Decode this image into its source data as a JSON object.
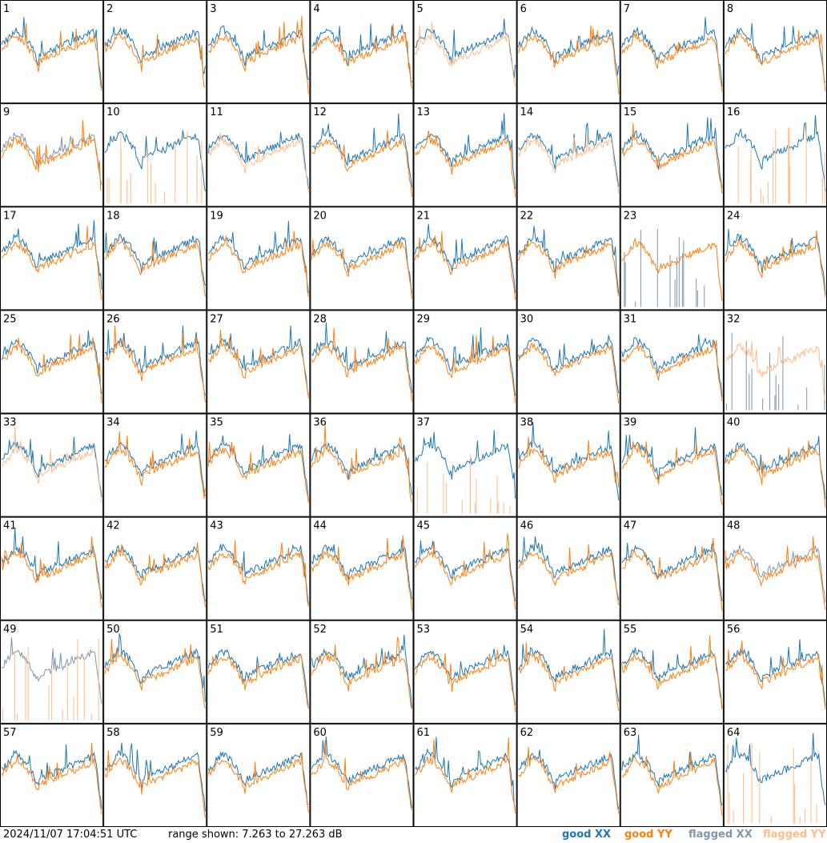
{
  "footer": {
    "timestamp": "2024/11/07 17:04:51 UTC",
    "range": "range shown: 7.263 to 27.263 dB"
  },
  "legend": [
    {
      "label": "good XX",
      "color": "#1f77b4"
    },
    {
      "label": "good YY",
      "color": "#ff7f0e"
    },
    {
      "label": "flagged XX",
      "color": "#7f97ad"
    },
    {
      "label": "flagged YY",
      "color": "#ffbb88"
    }
  ],
  "chart_data": {
    "type": "line",
    "grid": {
      "rows": 8,
      "cols": 8
    },
    "ylim": [
      7.263,
      27.263
    ],
    "yunit": "dB",
    "panels": [
      {
        "id": "1",
        "xx": "good",
        "yy": "good"
      },
      {
        "id": "2",
        "xx": "good",
        "yy": "good"
      },
      {
        "id": "3",
        "xx": "good",
        "yy": "good"
      },
      {
        "id": "4",
        "xx": "good",
        "yy": "good"
      },
      {
        "id": "5",
        "xx": "good",
        "yy": "flagged"
      },
      {
        "id": "6",
        "xx": "good",
        "yy": "good"
      },
      {
        "id": "7",
        "xx": "good",
        "yy": "good"
      },
      {
        "id": "8",
        "xx": "good",
        "yy": "good"
      },
      {
        "id": "9",
        "xx": "flagged",
        "yy": "good"
      },
      {
        "id": "10",
        "xx": "good",
        "yy": "flagged"
      },
      {
        "id": "11",
        "xx": "good",
        "yy": "flagged"
      },
      {
        "id": "12",
        "xx": "good",
        "yy": "good"
      },
      {
        "id": "13",
        "xx": "good",
        "yy": "good"
      },
      {
        "id": "14",
        "xx": "good",
        "yy": "flagged"
      },
      {
        "id": "15",
        "xx": "good",
        "yy": "good"
      },
      {
        "id": "16",
        "xx": "good",
        "yy": "flagged"
      },
      {
        "id": "17",
        "xx": "good",
        "yy": "good"
      },
      {
        "id": "18",
        "xx": "good",
        "yy": "good"
      },
      {
        "id": "19",
        "xx": "good",
        "yy": "good"
      },
      {
        "id": "20",
        "xx": "good",
        "yy": "good"
      },
      {
        "id": "21",
        "xx": "good",
        "yy": "good"
      },
      {
        "id": "22",
        "xx": "good",
        "yy": "good"
      },
      {
        "id": "23",
        "xx": "flagged",
        "yy": "good"
      },
      {
        "id": "24",
        "xx": "good",
        "yy": "good"
      },
      {
        "id": "25",
        "xx": "good",
        "yy": "good"
      },
      {
        "id": "26",
        "xx": "good",
        "yy": "good"
      },
      {
        "id": "27",
        "xx": "good",
        "yy": "good"
      },
      {
        "id": "28",
        "xx": "good",
        "yy": "good"
      },
      {
        "id": "29",
        "xx": "good",
        "yy": "good"
      },
      {
        "id": "30",
        "xx": "good",
        "yy": "good"
      },
      {
        "id": "31",
        "xx": "good",
        "yy": "good"
      },
      {
        "id": "32",
        "xx": "flagged",
        "yy": "flagged"
      },
      {
        "id": "33",
        "xx": "good",
        "yy": "flagged"
      },
      {
        "id": "34",
        "xx": "good",
        "yy": "good"
      },
      {
        "id": "35",
        "xx": "good",
        "yy": "good"
      },
      {
        "id": "36",
        "xx": "good",
        "yy": "good"
      },
      {
        "id": "37",
        "xx": "good",
        "yy": "flagged"
      },
      {
        "id": "38",
        "xx": "good",
        "yy": "good"
      },
      {
        "id": "39",
        "xx": "good",
        "yy": "good"
      },
      {
        "id": "40",
        "xx": "good",
        "yy": "good"
      },
      {
        "id": "41",
        "xx": "good",
        "yy": "good"
      },
      {
        "id": "42",
        "xx": "good",
        "yy": "good"
      },
      {
        "id": "43",
        "xx": "good",
        "yy": "good"
      },
      {
        "id": "44",
        "xx": "good",
        "yy": "good"
      },
      {
        "id": "45",
        "xx": "good",
        "yy": "good"
      },
      {
        "id": "46",
        "xx": "good",
        "yy": "good"
      },
      {
        "id": "47",
        "xx": "good",
        "yy": "good"
      },
      {
        "id": "48",
        "xx": "flagged",
        "yy": "good"
      },
      {
        "id": "49",
        "xx": "flagged",
        "yy": "flagged"
      },
      {
        "id": "50",
        "xx": "good",
        "yy": "good"
      },
      {
        "id": "51",
        "xx": "good",
        "yy": "good"
      },
      {
        "id": "52",
        "xx": "good",
        "yy": "good"
      },
      {
        "id": "53",
        "xx": "good",
        "yy": "good"
      },
      {
        "id": "54",
        "xx": "good",
        "yy": "good"
      },
      {
        "id": "55",
        "xx": "good",
        "yy": "good"
      },
      {
        "id": "56",
        "xx": "good",
        "yy": "good"
      },
      {
        "id": "57",
        "xx": "good",
        "yy": "good"
      },
      {
        "id": "58",
        "xx": "good",
        "yy": "good"
      },
      {
        "id": "59",
        "xx": "good",
        "yy": "good"
      },
      {
        "id": "60",
        "xx": "good",
        "yy": "good"
      },
      {
        "id": "61",
        "xx": "good",
        "yy": "good"
      },
      {
        "id": "62",
        "xx": "good",
        "yy": "good"
      },
      {
        "id": "63",
        "xx": "good",
        "yy": "good"
      },
      {
        "id": "64",
        "xx": "good",
        "yy": "flagged"
      }
    ]
  }
}
